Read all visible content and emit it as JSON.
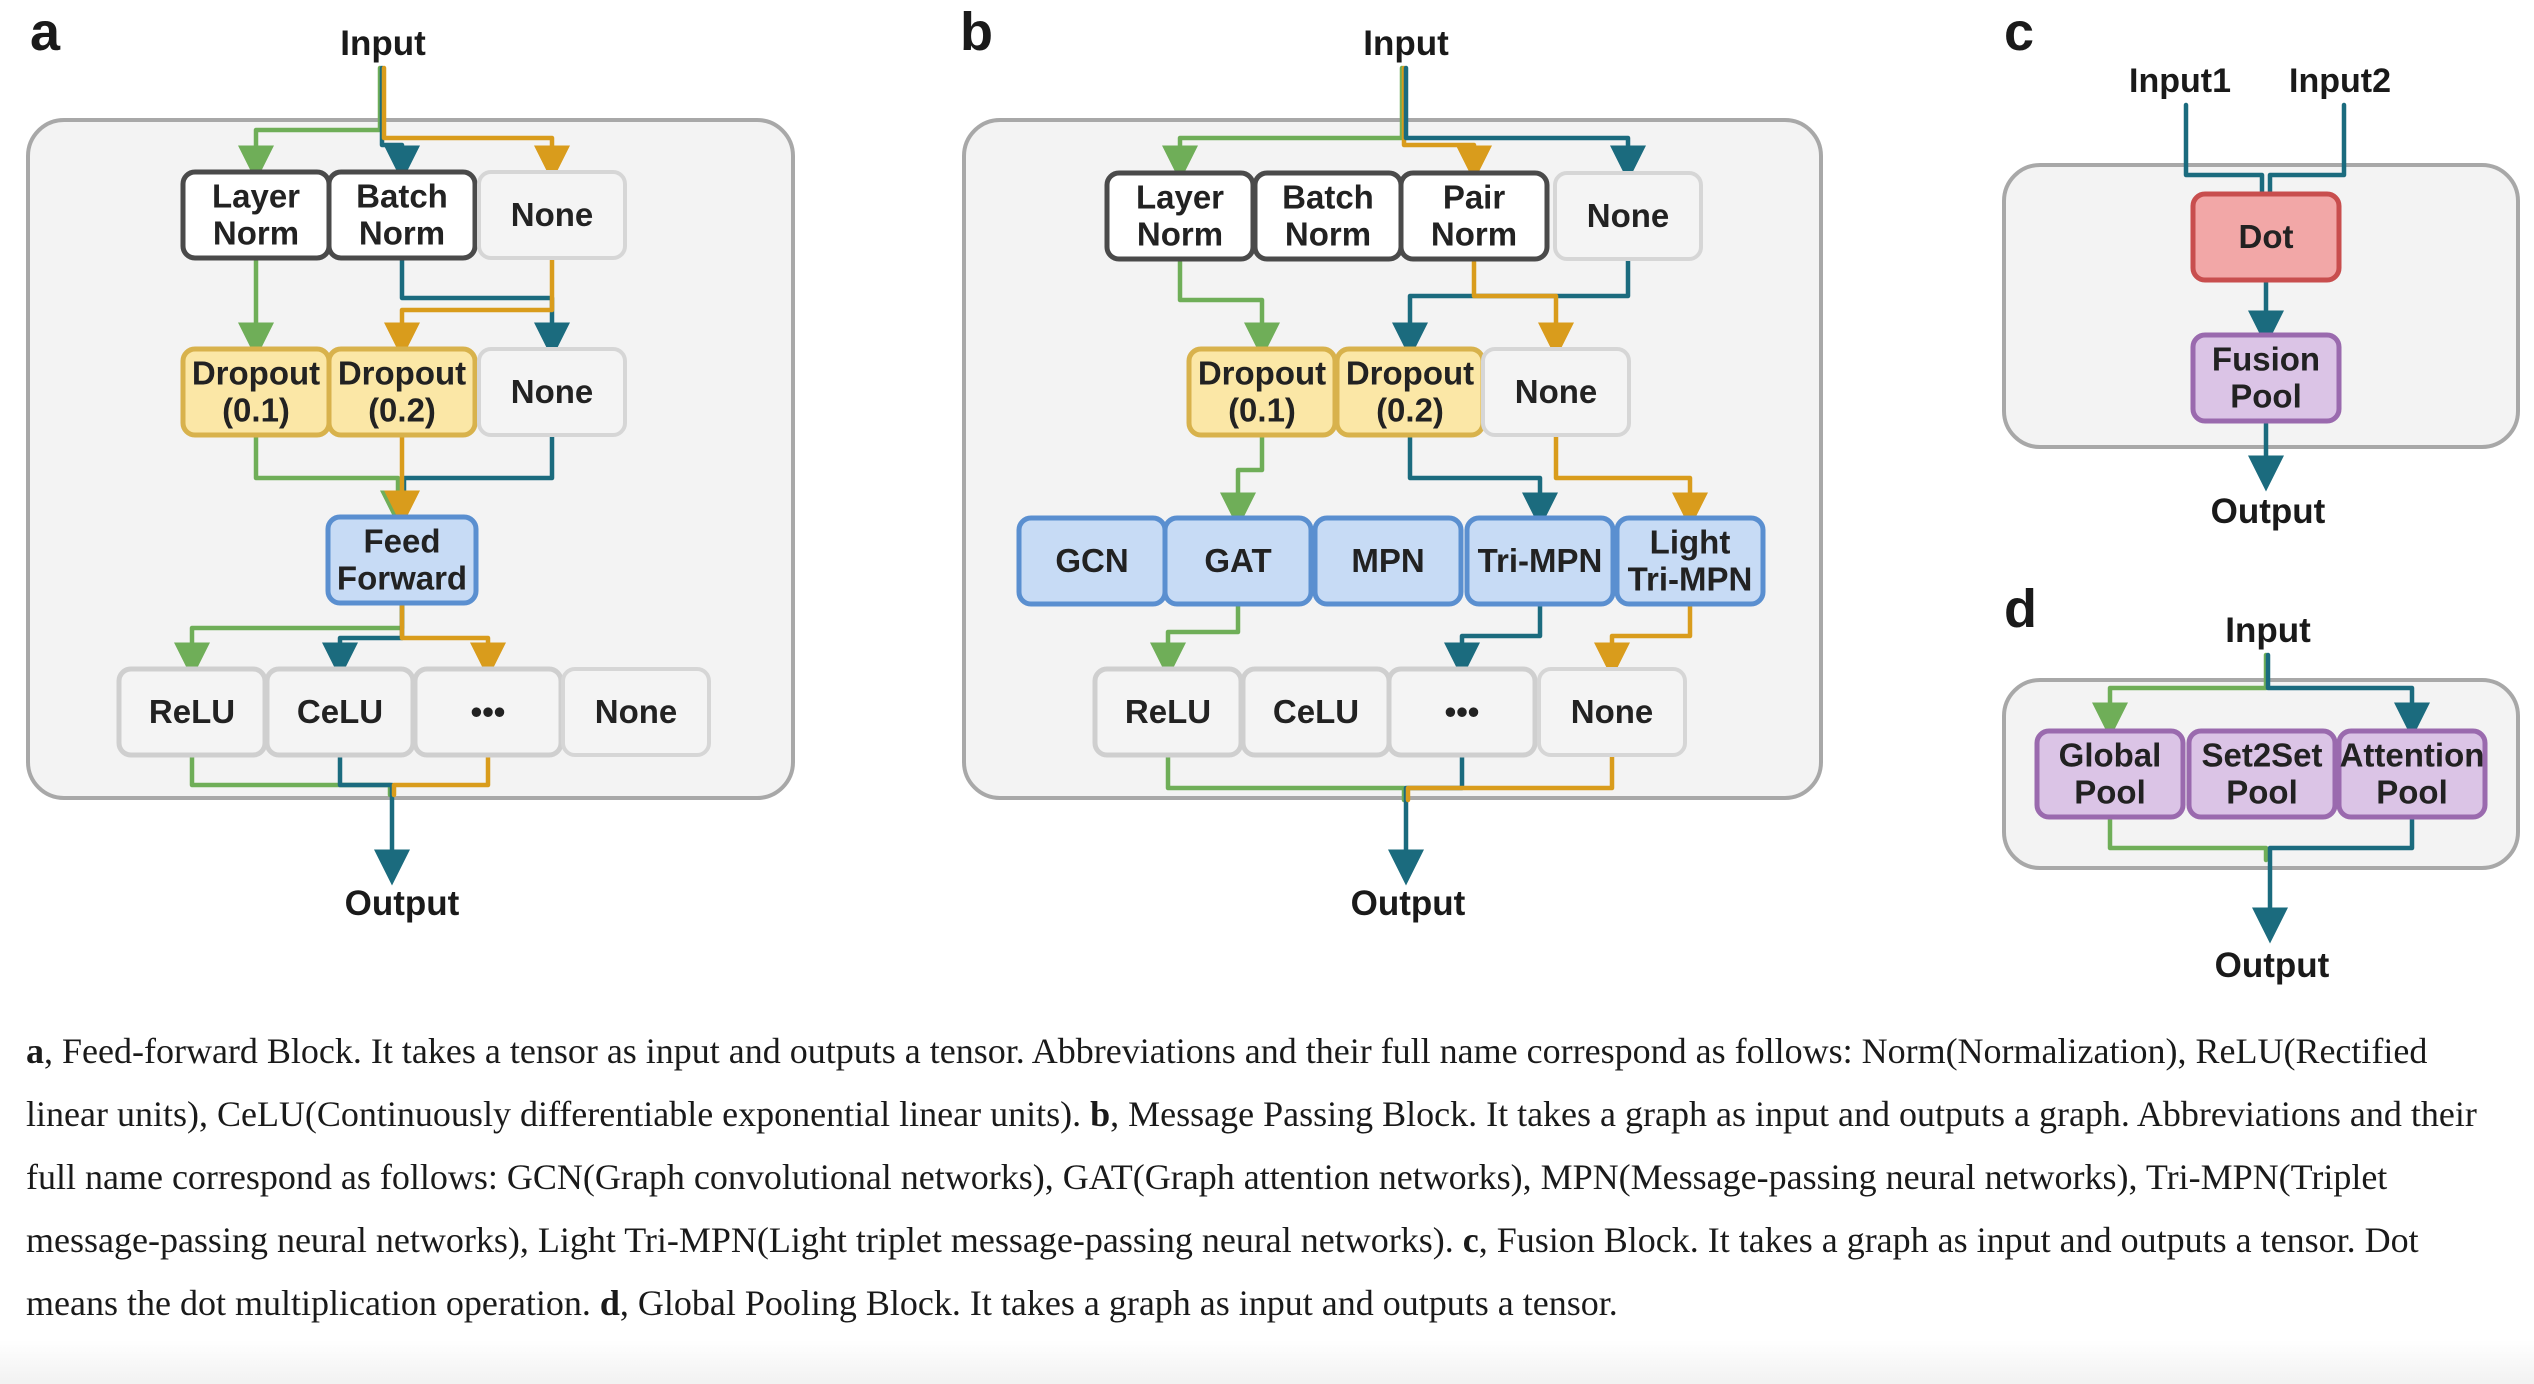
{
  "panels": {
    "a": {
      "letter": "a",
      "input": "Input",
      "output": "Output",
      "norm_row": [
        "Layer\nNorm",
        "Batch\nNorm",
        "None"
      ],
      "dropout_row": [
        "Dropout\n(0.1)",
        "Dropout\n(0.2)",
        "None"
      ],
      "core": "Feed\nForward",
      "act_row": [
        "ReLU",
        "CeLU",
        "•••",
        "None"
      ]
    },
    "b": {
      "letter": "b",
      "input": "Input",
      "output": "Output",
      "norm_row": [
        "Layer\nNorm",
        "Batch\nNorm",
        "Pair\nNorm",
        "None"
      ],
      "dropout_row": [
        "Dropout\n(0.1)",
        "Dropout\n(0.2)",
        "None"
      ],
      "mp_row": [
        "GCN",
        "GAT",
        "MPN",
        "Tri-MPN",
        "Light\nTri-MPN"
      ],
      "act_row": [
        "ReLU",
        "CeLU",
        "•••",
        "None"
      ]
    },
    "c": {
      "letter": "c",
      "input1": "Input1",
      "input2": "Input2",
      "dot": "Dot",
      "fusion": "Fusion\nPool",
      "output": "Output"
    },
    "d": {
      "letter": "d",
      "input": "Input",
      "output": "Output",
      "pool_row": [
        "Global\nPool",
        "Set2Set\nPool",
        "Attention\nPool"
      ]
    }
  },
  "caption": [
    {
      "b": "a",
      "t": ", Feed-forward Block. It takes a tensor as input and outputs a tensor. Abbreviations and their full name correspond as follows: Norm(Normalization), ReLU(Rectified linear units), CeLU(Continuously differentiable exponential linear units). "
    },
    {
      "b": "b",
      "t": ", Message Passing Block. It takes a graph as input and outputs a graph. Abbreviations and their full name correspond as follows: GCN(Graph convolutional networks), GAT(Graph attention networks), MPN(Message-passing neural networks), Tri-MPN(Triplet message-passing neural networks), Light Tri-MPN(Light triplet message-passing neural networks). "
    },
    {
      "b": "c",
      "t": ", Fusion Block. It takes a graph as input and outputs a tensor. Dot means the dot multiplication operation. "
    },
    {
      "b": "d",
      "t": ", Global Pooling Block. It takes a graph as input and outputs a tensor."
    }
  ],
  "colors": {
    "green": "#6fae58",
    "teal": "#1b6b7e",
    "gold": "#d99c1c",
    "panel_bg": "#f3f3f3",
    "panel_border": "#a8a8a8",
    "norm_border": "#4a4a4a",
    "none_border": "#d6d6d6",
    "dropout_fill": "#fbe7a6",
    "dropout_border": "#d8b24c",
    "blue_fill": "#c7dbf5",
    "blue_border": "#5a8fd0",
    "red_fill": "#f2a7a7",
    "red_border": "#c84e4e",
    "purple_fill": "#dbc4e6",
    "purple_border": "#9a6aae"
  }
}
